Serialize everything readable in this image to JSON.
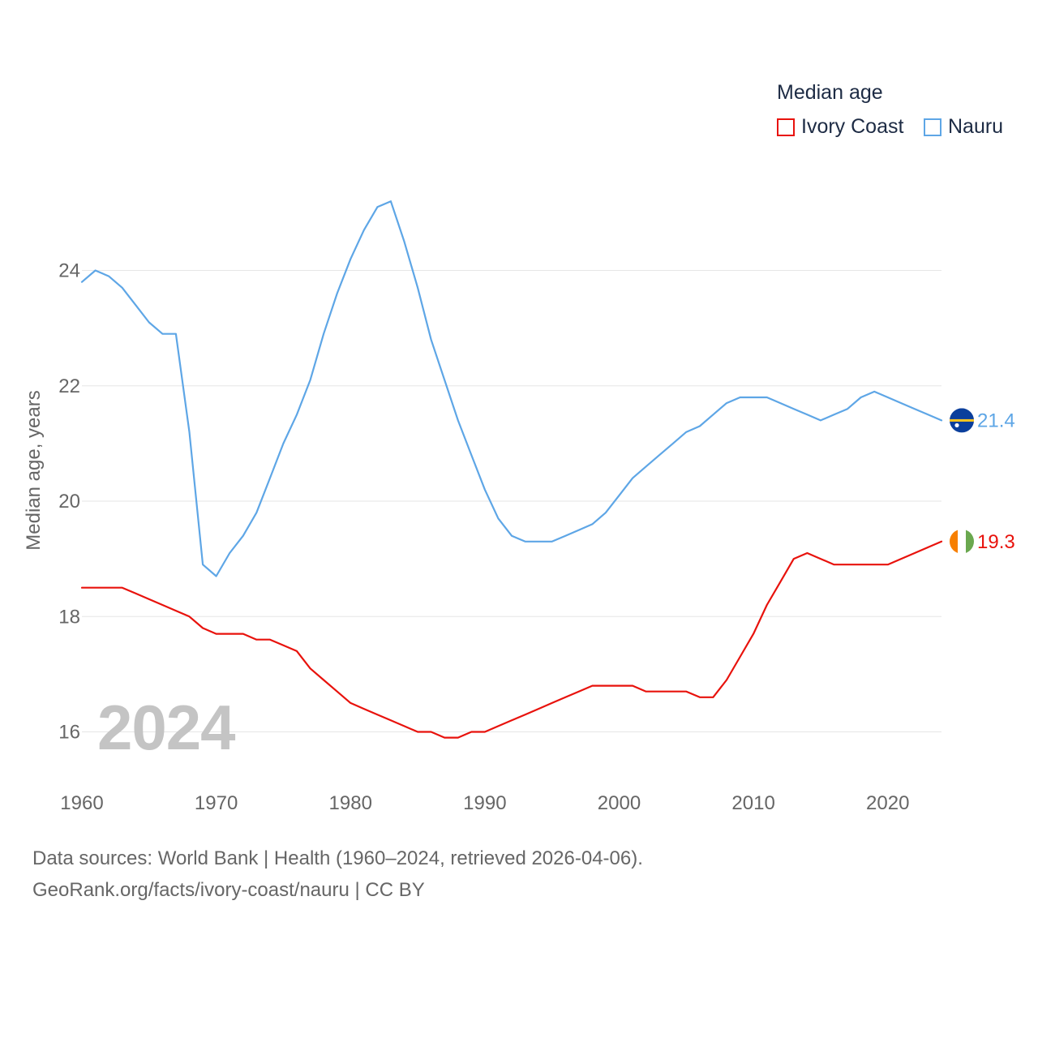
{
  "legend": {
    "title": "Median age",
    "items": [
      {
        "label": "Ivory Coast",
        "color": "#e8120c"
      },
      {
        "label": "Nauru",
        "color": "#5ea6e6"
      }
    ]
  },
  "watermark_year": "2024",
  "footer": {
    "line1": "Data sources: World Bank | Health (1960–2024, retrieved 2026-04-06).",
    "line2": "GeoRank.org/facts/ivory-coast/nauru | CC BY"
  },
  "chart_data": {
    "type": "line",
    "title": "Median age",
    "xlabel": "",
    "ylabel": "Median age, years",
    "xlim": [
      1960,
      2024
    ],
    "ylim": [
      15.2,
      25.6
    ],
    "xticks": [
      1960,
      1970,
      1980,
      1990,
      2000,
      2010,
      2020
    ],
    "yticks": [
      16,
      18,
      20,
      22,
      24
    ],
    "grid": true,
    "legend_position": "top-right",
    "x": [
      1960,
      1961,
      1962,
      1963,
      1964,
      1965,
      1966,
      1967,
      1968,
      1969,
      1970,
      1971,
      1972,
      1973,
      1974,
      1975,
      1976,
      1977,
      1978,
      1979,
      1980,
      1981,
      1982,
      1983,
      1984,
      1985,
      1986,
      1987,
      1988,
      1989,
      1990,
      1991,
      1992,
      1993,
      1994,
      1995,
      1996,
      1997,
      1998,
      1999,
      2000,
      2001,
      2002,
      2003,
      2004,
      2005,
      2006,
      2007,
      2008,
      2009,
      2010,
      2011,
      2012,
      2013,
      2014,
      2015,
      2016,
      2017,
      2018,
      2019,
      2020,
      2021,
      2022,
      2023,
      2024
    ],
    "series": [
      {
        "name": "Ivory Coast",
        "color": "#e8120c",
        "end_label": "19.3",
        "values": [
          18.5,
          18.5,
          18.5,
          18.5,
          18.4,
          18.3,
          18.2,
          18.1,
          18.0,
          17.8,
          17.7,
          17.7,
          17.7,
          17.6,
          17.6,
          17.5,
          17.4,
          17.1,
          16.9,
          16.7,
          16.5,
          16.4,
          16.3,
          16.2,
          16.1,
          16.0,
          16.0,
          15.9,
          15.9,
          16.0,
          16.0,
          16.1,
          16.2,
          16.3,
          16.4,
          16.5,
          16.6,
          16.7,
          16.8,
          16.8,
          16.8,
          16.8,
          16.7,
          16.7,
          16.7,
          16.7,
          16.6,
          16.6,
          16.9,
          17.3,
          17.7,
          18.2,
          18.6,
          19.0,
          19.1,
          19.0,
          18.9,
          18.9,
          18.9,
          18.9,
          18.9,
          19.0,
          19.1,
          19.2,
          19.3
        ]
      },
      {
        "name": "Nauru",
        "color": "#5ea6e6",
        "end_label": "21.4",
        "values": [
          23.8,
          24.0,
          23.9,
          23.7,
          23.4,
          23.1,
          22.9,
          22.9,
          21.2,
          18.9,
          18.7,
          19.1,
          19.4,
          19.8,
          20.4,
          21.0,
          21.5,
          22.1,
          22.9,
          23.6,
          24.2,
          24.7,
          25.1,
          25.2,
          24.5,
          23.7,
          22.8,
          22.1,
          21.4,
          20.8,
          20.2,
          19.7,
          19.4,
          19.3,
          19.3,
          19.3,
          19.4,
          19.5,
          19.6,
          19.8,
          20.1,
          20.4,
          20.6,
          20.8,
          21.0,
          21.2,
          21.3,
          21.5,
          21.7,
          21.8,
          21.8,
          21.8,
          21.7,
          21.6,
          21.5,
          21.4,
          21.5,
          21.6,
          21.8,
          21.9,
          21.8,
          21.7,
          21.6,
          21.5,
          21.4
        ]
      }
    ]
  }
}
